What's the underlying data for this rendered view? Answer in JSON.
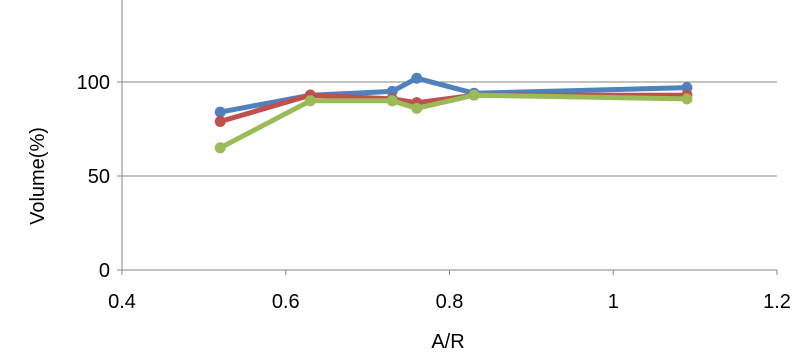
{
  "chart_data": {
    "type": "line",
    "title": "",
    "xlabel": "A/R",
    "ylabel": "Volume(%)",
    "xlim": [
      0.4,
      1.2
    ],
    "ylim": [
      0,
      150
    ],
    "grid": "horizontal",
    "legend": "none",
    "x_ticks": [
      "0.4",
      "0.6",
      "0.8",
      "1",
      "1.2"
    ],
    "y_ticks": [
      "0",
      "50",
      "100"
    ],
    "series": [
      {
        "color": "#4f81bd",
        "points": [
          [
            0.52,
            84
          ],
          [
            0.63,
            93
          ],
          [
            0.73,
            95
          ],
          [
            0.76,
            102
          ],
          [
            0.83,
            94
          ],
          [
            1.09,
            97
          ]
        ]
      },
      {
        "color": "#c0504d",
        "points": [
          [
            0.52,
            79
          ],
          [
            0.63,
            93
          ],
          [
            0.73,
            91
          ],
          [
            0.76,
            89
          ],
          [
            0.83,
            93
          ],
          [
            1.09,
            93
          ]
        ]
      },
      {
        "color": "#9bbb59",
        "points": [
          [
            0.52,
            65
          ],
          [
            0.63,
            90
          ],
          [
            0.73,
            90
          ],
          [
            0.76,
            86
          ],
          [
            0.83,
            93
          ],
          [
            1.09,
            91
          ]
        ]
      }
    ]
  }
}
